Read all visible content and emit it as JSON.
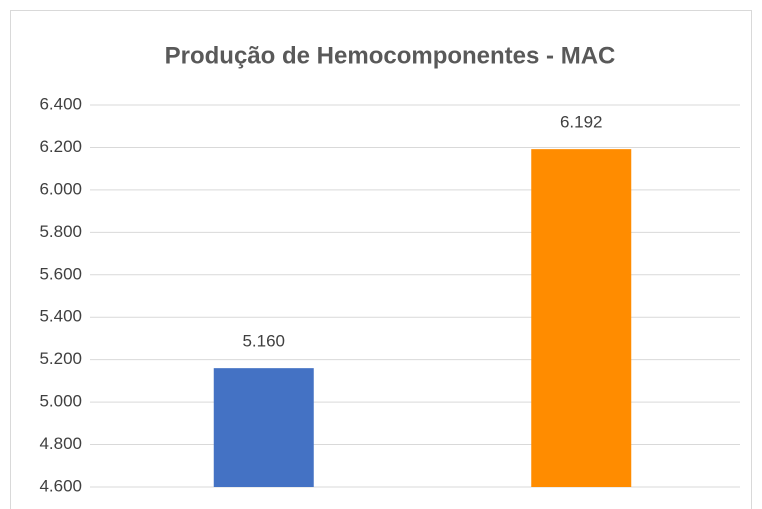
{
  "chart_data": {
    "type": "bar",
    "title": "Produção de Hemocomponentes - MAC",
    "categories": [
      null,
      null
    ],
    "values": [
      5160,
      6192
    ],
    "value_labels": [
      "5.160",
      "6.192"
    ],
    "colors": [
      "#4472c4",
      "#ff8c00"
    ],
    "ylim": [
      4600,
      6400
    ],
    "yticks": [
      {
        "value": 4600,
        "label": "4.600"
      },
      {
        "value": 4800,
        "label": "4.800"
      },
      {
        "value": 5000,
        "label": "5.000"
      },
      {
        "value": 5200,
        "label": "5.200"
      },
      {
        "value": 5400,
        "label": "5.400"
      },
      {
        "value": 5600,
        "label": "5.600"
      },
      {
        "value": 5800,
        "label": "5.800"
      },
      {
        "value": 6000,
        "label": "6.000"
      },
      {
        "value": 6200,
        "label": "6.200"
      },
      {
        "value": 6400,
        "label": "6.400"
      }
    ],
    "grid": true
  }
}
